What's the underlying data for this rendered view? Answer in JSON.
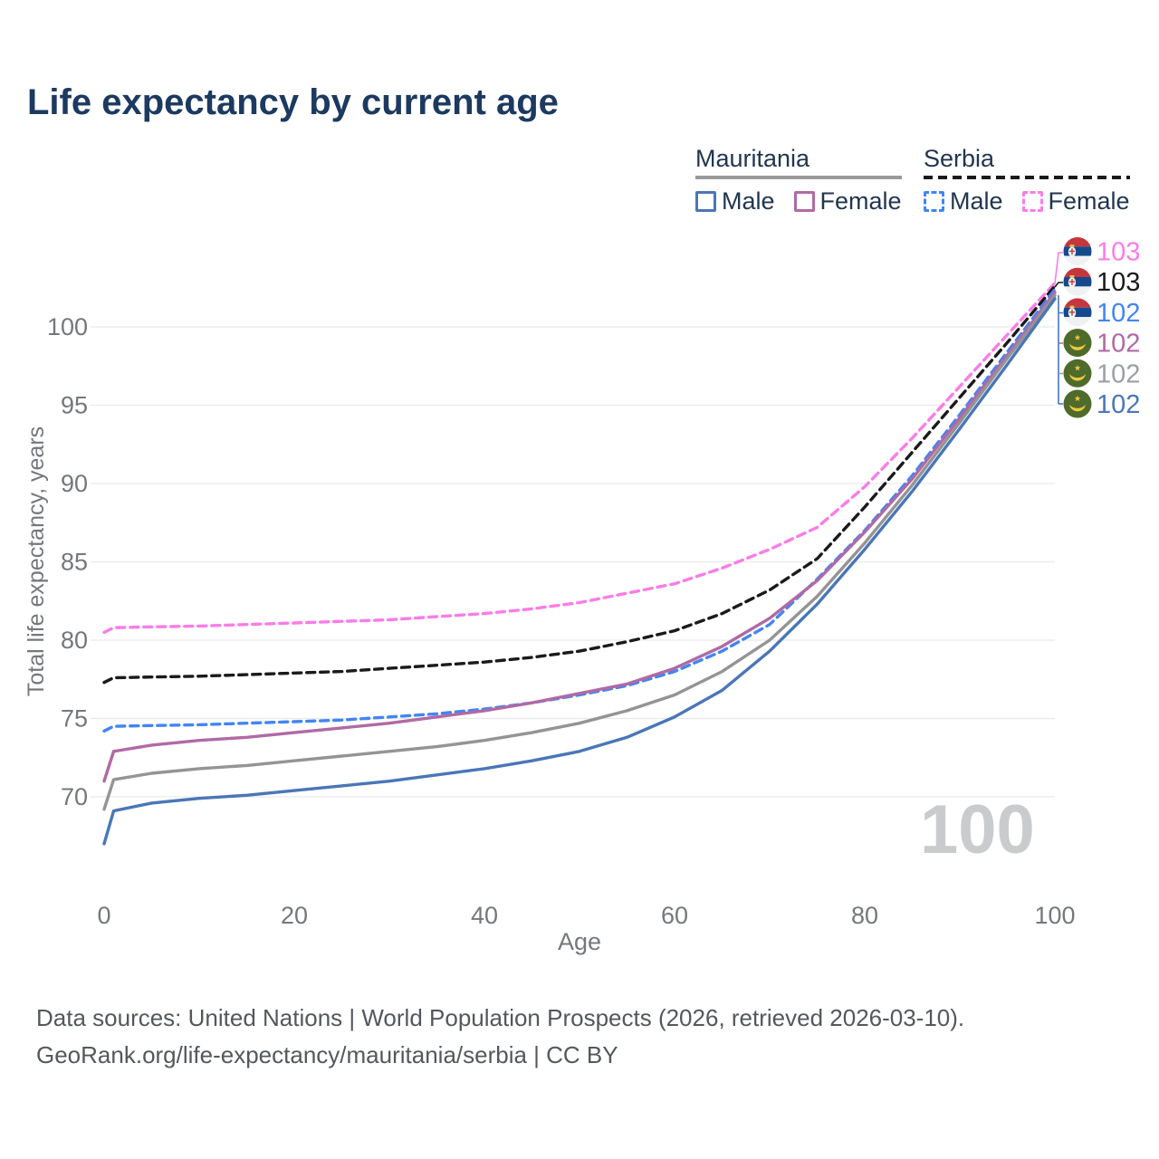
{
  "title": "Life expectancy by current age",
  "legend": {
    "groups": [
      {
        "label": "Mauritania",
        "line_style": "solid",
        "underline_color": "#9a9a9a",
        "items": [
          {
            "label": "Male",
            "color": "#4a76b8",
            "dashed": false
          },
          {
            "label": "Female",
            "color": "#b06aa5",
            "dashed": false
          }
        ]
      },
      {
        "label": "Serbia",
        "line_style": "dashed",
        "underline_color": "#1a1a1a",
        "items": [
          {
            "label": "Male",
            "color": "#4285f4",
            "dashed": true
          },
          {
            "label": "Female",
            "color": "#fb7ce8",
            "dashed": true
          }
        ]
      }
    ]
  },
  "chart_data": {
    "type": "line",
    "title": "Life expectancy by current age",
    "xlabel": "Age",
    "ylabel": "Total life expectancy, years",
    "watermark": "100",
    "xlim": [
      0,
      100
    ],
    "ylim": [
      66,
      104
    ],
    "xticks": [
      0,
      20,
      40,
      60,
      80,
      100
    ],
    "yticks": [
      70,
      75,
      80,
      85,
      90,
      95,
      100
    ],
    "grid": "horizontal-only",
    "legend_position": "top-right",
    "x": [
      0,
      1,
      5,
      10,
      15,
      20,
      25,
      30,
      35,
      40,
      45,
      50,
      55,
      60,
      65,
      70,
      75,
      80,
      85,
      90,
      95,
      100
    ],
    "series": [
      {
        "id": "serbia-female",
        "name": "Serbia Female",
        "country": "Serbia",
        "color": "#fb7ce8",
        "dashed": true,
        "end_value": 103,
        "values": [
          80.5,
          80.8,
          80.85,
          80.9,
          81.0,
          81.1,
          81.2,
          81.3,
          81.5,
          81.7,
          82.0,
          82.4,
          83.0,
          83.6,
          84.6,
          85.8,
          87.2,
          89.8,
          92.9,
          96.2,
          99.5,
          102.8
        ]
      },
      {
        "id": "serbia-total",
        "name": "Serbia (both sexes)",
        "country": "Serbia",
        "color": "#1a1a1a",
        "dashed": true,
        "end_value": 103,
        "values": [
          77.3,
          77.6,
          77.65,
          77.7,
          77.8,
          77.9,
          78.0,
          78.2,
          78.4,
          78.6,
          78.9,
          79.3,
          79.9,
          80.6,
          81.7,
          83.2,
          85.2,
          88.5,
          92.0,
          95.5,
          99.0,
          102.6
        ]
      },
      {
        "id": "serbia-male",
        "name": "Serbia Male",
        "country": "Serbia",
        "color": "#4285f4",
        "dashed": true,
        "end_value": 102,
        "values": [
          74.2,
          74.5,
          74.55,
          74.6,
          74.7,
          74.8,
          74.9,
          75.1,
          75.3,
          75.6,
          76.0,
          76.5,
          77.1,
          78.0,
          79.3,
          81.0,
          83.9,
          87.0,
          90.5,
          94.4,
          98.4,
          102.4
        ]
      },
      {
        "id": "mauritania-female",
        "name": "Mauritania Female",
        "country": "Mauritania",
        "color": "#b06aa5",
        "dashed": false,
        "end_value": 102,
        "values": [
          71.0,
          72.9,
          73.3,
          73.6,
          73.8,
          74.1,
          74.4,
          74.7,
          75.1,
          75.5,
          76.0,
          76.6,
          77.2,
          78.2,
          79.6,
          81.4,
          83.8,
          86.9,
          90.3,
          94.2,
          98.2,
          102.2
        ]
      },
      {
        "id": "mauritania-total",
        "name": "Mauritania (both sexes)",
        "country": "Mauritania",
        "color": "#949494",
        "dashed": false,
        "end_value": 102,
        "values": [
          69.2,
          71.1,
          71.5,
          71.8,
          72.0,
          72.3,
          72.6,
          72.9,
          73.2,
          73.6,
          74.1,
          74.7,
          75.5,
          76.5,
          78.0,
          80.0,
          82.8,
          86.2,
          89.9,
          93.9,
          98.0,
          102.0
        ]
      },
      {
        "id": "mauritania-male",
        "name": "Mauritania Male",
        "country": "Mauritania",
        "color": "#4a76b8",
        "dashed": false,
        "end_value": 102,
        "values": [
          67.0,
          69.1,
          69.6,
          69.9,
          70.1,
          70.4,
          70.7,
          71.0,
          71.4,
          71.8,
          72.3,
          72.9,
          73.8,
          75.1,
          76.8,
          79.3,
          82.3,
          85.8,
          89.5,
          93.5,
          97.6,
          101.8
        ]
      }
    ],
    "end_labels": [
      {
        "value": "103",
        "color": "#fb7ce8",
        "flag": "serbia"
      },
      {
        "value": "103",
        "color": "#1a1a1a",
        "flag": "serbia"
      },
      {
        "value": "102",
        "color": "#4285f4",
        "flag": "serbia"
      },
      {
        "value": "102",
        "color": "#b06aa5",
        "flag": "mauritania"
      },
      {
        "value": "102",
        "color": "#9aa0a6",
        "flag": "mauritania"
      },
      {
        "value": "102",
        "color": "#4a76b8",
        "flag": "mauritania"
      }
    ]
  },
  "footer": {
    "line1": "Data sources: United Nations | World Population Prospects (2026, retrieved 2026-03-10).",
    "line2": "GeoRank.org/life-expectancy/mauritania/serbia | CC BY"
  }
}
